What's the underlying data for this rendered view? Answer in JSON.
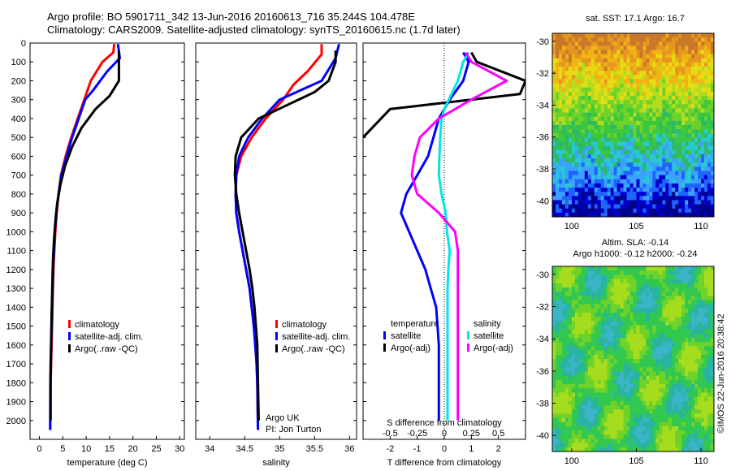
{
  "titles": {
    "line1": "Argo profile: BO 5901711_342 13-Jun-2016 20160613_716 35.244S 104.478E",
    "line2": "Climatology: CARS2009. Satellite-adjusted climatology: synTS_20160615.nc (1.7d later)"
  },
  "colors": {
    "climatology": "#ff0000",
    "satellite": "#0000ff",
    "argo": "#000000",
    "sat_salinity": "#00e6e6",
    "argo_salinity": "#ff00ff"
  },
  "chart_data": [
    {
      "type": "line",
      "xlabel": "temperature (deg C)",
      "ylabel": "",
      "xlim": [
        -2,
        31
      ],
      "ylim": [
        2100,
        0
      ],
      "xticks": [
        0,
        5,
        10,
        15,
        20,
        25,
        30
      ],
      "yticks": [
        0,
        100,
        200,
        300,
        400,
        500,
        600,
        700,
        800,
        900,
        1000,
        1100,
        1200,
        1300,
        1400,
        1500,
        1600,
        1700,
        1800,
        1900,
        2000
      ],
      "legend_placement": "lower-center",
      "series": [
        {
          "name": "climatology",
          "color": "#ff0000",
          "x": [
            16,
            15.8,
            13.5,
            11,
            9.6,
            8.2,
            6.8,
            5.6,
            4.6,
            4.1,
            3.7,
            3.4,
            3.2,
            3.0,
            2.9,
            2.8,
            2.7,
            2.6,
            2.5,
            2.4,
            2.3
          ],
          "y": [
            5,
            50,
            100,
            200,
            300,
            400,
            500,
            600,
            700,
            800,
            900,
            1000,
            1100,
            1200,
            1300,
            1400,
            1500,
            1600,
            1700,
            1800,
            2050
          ]
        },
        {
          "name": "satellite-adj. clim.",
          "color": "#0000ff",
          "x": [
            16.8,
            17.2,
            14.5,
            11.5,
            9.8,
            8.4,
            7.0,
            5.8,
            4.7,
            4.1,
            3.6,
            3.3,
            3.1,
            2.9,
            2.8,
            2.7,
            2.6,
            2.5,
            2.4,
            2.35,
            2.3
          ],
          "y": [
            5,
            80,
            150,
            250,
            300,
            400,
            500,
            600,
            700,
            800,
            900,
            1000,
            1100,
            1200,
            1300,
            1400,
            1500,
            1600,
            1700,
            1800,
            2050
          ]
        },
        {
          "name": "Argo(..raw -QC)",
          "color": "#000000",
          "x": [
            17,
            17,
            17,
            15,
            12,
            9,
            7,
            5.5,
            4.5,
            3.8,
            3.4,
            3.1,
            2.9,
            2.8,
            2.7,
            2.6,
            2.5,
            2.45,
            2.4,
            2.4
          ],
          "y": [
            40,
            100,
            200,
            280,
            350,
            450,
            550,
            650,
            750,
            850,
            950,
            1050,
            1150,
            1250,
            1350,
            1450,
            1600,
            1700,
            1800,
            2000
          ]
        }
      ]
    },
    {
      "type": "line",
      "xlabel": "salinity",
      "ylabel": "",
      "xlim": [
        33.8,
        36.1
      ],
      "ylim": [
        2100,
        0
      ],
      "xticks": [
        34,
        34.5,
        35,
        35.5,
        36
      ],
      "xticklabels": [
        "34",
        "34.5",
        "35",
        "35.5",
        "36"
      ],
      "legend_placement": "lower-center",
      "annotations": [
        "Argo UK",
        "PI: Jon Turton"
      ],
      "series": [
        {
          "name": "climatology",
          "color": "#ff0000",
          "x": [
            35.6,
            35.6,
            35.4,
            35.2,
            35.05,
            34.8,
            34.6,
            34.45,
            34.38,
            34.37,
            34.38,
            34.42,
            34.47,
            34.52,
            34.57,
            34.6,
            34.63,
            34.66,
            34.67,
            34.68,
            34.69
          ],
          "y": [
            5,
            60,
            150,
            220,
            300,
            400,
            500,
            600,
            700,
            800,
            900,
            1000,
            1100,
            1200,
            1300,
            1400,
            1500,
            1600,
            1700,
            1800,
            2050
          ]
        },
        {
          "name": "satellite-adj. clim.",
          "color": "#0000ff",
          "x": [
            35.85,
            35.8,
            35.6,
            35.3,
            35.0,
            34.75,
            34.55,
            34.42,
            34.38,
            34.37,
            34.38,
            34.42,
            34.47,
            34.52,
            34.57,
            34.6,
            34.63,
            34.65,
            34.67,
            34.68,
            34.69
          ],
          "y": [
            5,
            80,
            200,
            250,
            300,
            400,
            500,
            600,
            700,
            800,
            900,
            1000,
            1100,
            1200,
            1300,
            1400,
            1500,
            1600,
            1700,
            1800,
            2050
          ]
        },
        {
          "name": "Argo(..raw -QC)",
          "color": "#000000",
          "x": [
            35.8,
            35.8,
            35.7,
            35.5,
            35.1,
            34.7,
            34.45,
            34.37,
            34.36,
            34.38,
            34.42,
            34.47,
            34.52,
            34.57,
            34.61,
            34.64,
            34.66,
            34.68,
            34.69,
            34.7
          ],
          "y": [
            40,
            100,
            200,
            260,
            330,
            400,
            500,
            600,
            700,
            800,
            900,
            1000,
            1100,
            1200,
            1300,
            1400,
            1500,
            1600,
            1800,
            2000
          ]
        }
      ]
    },
    {
      "type": "line",
      "xlabel": "T difference from climatology",
      "xlabel_top": "S difference from climatology",
      "ylabel": "",
      "xlim": [
        -3,
        3
      ],
      "ylim": [
        2100,
        0
      ],
      "xticks": [
        -2,
        -1,
        0,
        1,
        2
      ],
      "xticks_top": [
        -0.5,
        -0.25,
        0,
        0.25,
        0.5
      ],
      "xticklabels_top": [
        "-0.5",
        "-0.25",
        "0",
        "0.25",
        "0.5"
      ],
      "legend_placement": "lower-center",
      "legend_headers": {
        "temperature": "temperature",
        "salinity": "salinity"
      },
      "series": [
        {
          "name": "satellite",
          "group": "temperature",
          "color": "#0000ff",
          "x": [
            0.7,
            0.9,
            0.7,
            0.2,
            -0.2,
            -0.4,
            -0.6,
            -1.0,
            -1.4,
            -1.6,
            -1.3,
            -1.0,
            -0.7,
            -0.5,
            -0.3,
            -0.25,
            -0.2,
            -0.2,
            -0.2,
            -0.2
          ],
          "y": [
            50,
            100,
            200,
            300,
            400,
            500,
            600,
            700,
            800,
            900,
            1000,
            1100,
            1200,
            1300,
            1400,
            1500,
            1600,
            1700,
            1800,
            2000
          ]
        },
        {
          "name": "Argo(-adj)",
          "group": "temperature",
          "color": "#000000",
          "x": [
            1.0,
            1.2,
            3.0,
            2.8,
            -2.0,
            -3.0
          ],
          "y": [
            50,
            100,
            200,
            270,
            350,
            500
          ]
        },
        {
          "name": "satellite",
          "group": "salinity",
          "color": "#00e6e6",
          "x": [
            0.9,
            0.7,
            0.5,
            0.0,
            -0.1,
            -0.15,
            -0.18,
            -0.2,
            -0.1,
            0.05,
            0.1,
            0.2,
            0.15,
            0.12,
            0.12,
            0.12,
            0.12,
            0.12,
            0.12
          ],
          "y": [
            50,
            100,
            200,
            350,
            400,
            500,
            600,
            700,
            800,
            900,
            1000,
            1100,
            1200,
            1300,
            1400,
            1500,
            1600,
            1800,
            2000
          ]
        },
        {
          "name": "Argo(-adj)",
          "group": "salinity",
          "color": "#ff00ff",
          "x": [
            0.8,
            1.0,
            2.3,
            1.0,
            -0.2,
            -0.9,
            -1.1,
            -1.2,
            -1.0,
            -0.2,
            0.4,
            0.5,
            0.5,
            0.5,
            0.5,
            0.5,
            0.5,
            0.5
          ],
          "y": [
            50,
            100,
            200,
            300,
            400,
            500,
            600,
            700,
            800,
            900,
            1000,
            1100,
            1200,
            1400,
            1600,
            1700,
            1800,
            2000
          ]
        }
      ]
    },
    {
      "type": "heatmap",
      "title": "sat. SST: 17.1 Argo: 16.7",
      "xlim": [
        98.5,
        111
      ],
      "ylim": [
        -41,
        -29.5
      ],
      "xticks": [
        100,
        105,
        110
      ],
      "yticks": [
        -30,
        -32,
        -34,
        -36,
        -38,
        -40
      ]
    },
    {
      "type": "heatmap",
      "title_line1": "Altim. SLA: -0.14",
      "title_line2": "Argo h1000: -0.12 h2000: -0.24",
      "xlim": [
        98.5,
        111
      ],
      "ylim": [
        -41,
        -29.5
      ],
      "xticks": [
        100,
        105,
        110
      ],
      "yticks": [
        -30,
        -32,
        -34,
        -36,
        -38,
        -40
      ]
    }
  ],
  "side_label": "©IMOS 22-Jun-2016 20:38:42"
}
